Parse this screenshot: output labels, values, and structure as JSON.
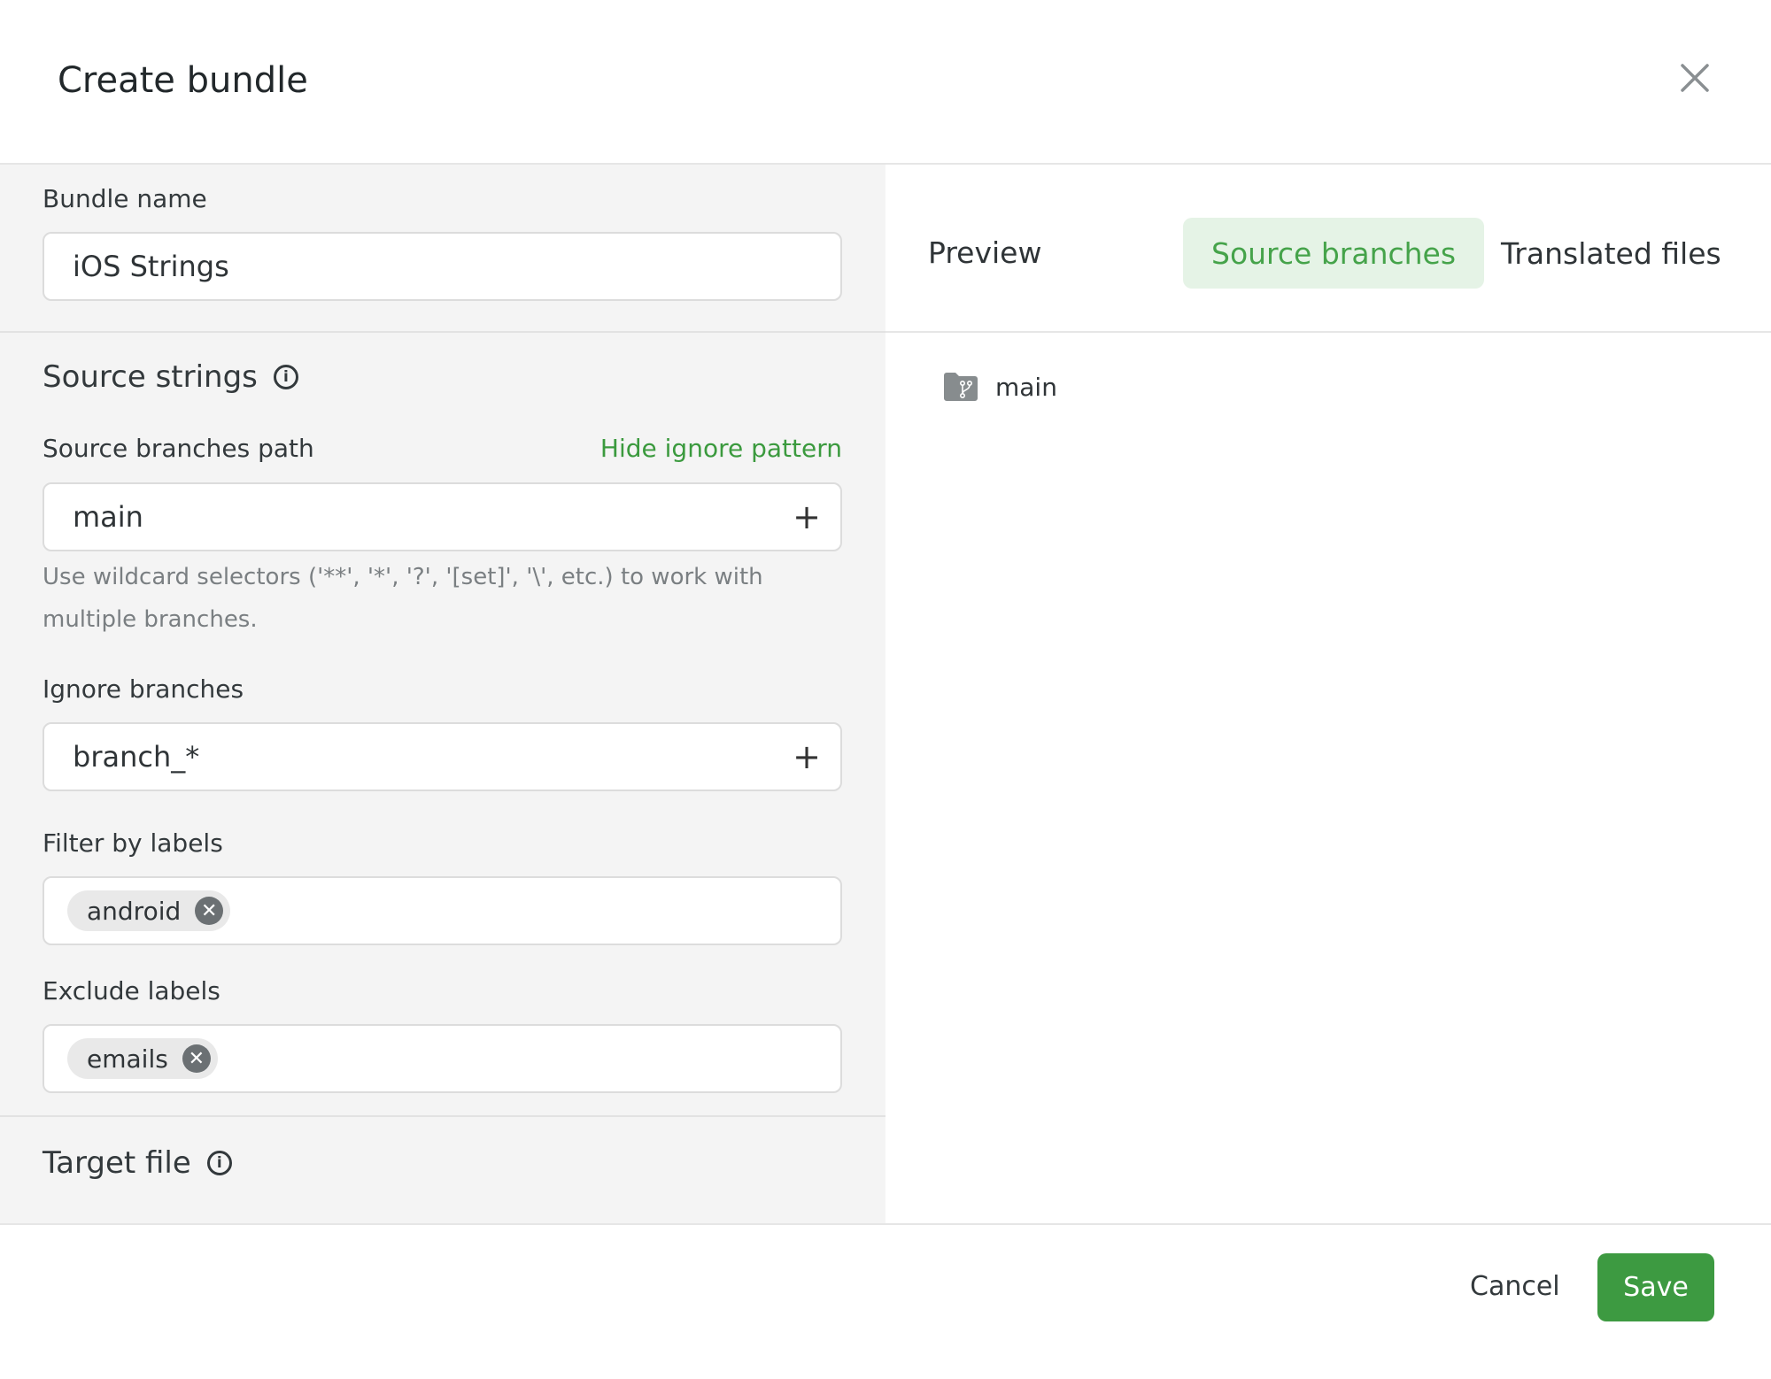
{
  "header": {
    "title": "Create bundle",
    "close_icon": "close-icon"
  },
  "form": {
    "bundle_name": {
      "label": "Bundle name",
      "value": "iOS Strings"
    },
    "source_strings": {
      "heading": "Source strings"
    },
    "source_branches_path": {
      "label": "Source branches path",
      "toggle_link": "Hide ignore pattern",
      "value": "main",
      "help": "Use wildcard selectors ('**', '*', '?', '[set]', '\\', etc.) to work with multiple branches."
    },
    "ignore_branches": {
      "label": "Ignore branches",
      "value": "branch_*"
    },
    "filter_by_labels": {
      "label": "Filter by labels",
      "chips": [
        "android"
      ]
    },
    "exclude_labels": {
      "label": "Exclude labels",
      "chips": [
        "emails"
      ]
    },
    "target_file": {
      "heading": "Target file"
    }
  },
  "preview": {
    "title": "Preview",
    "tabs": [
      {
        "label": "Source branches",
        "active": true
      },
      {
        "label": "Translated files",
        "active": false
      }
    ],
    "items": [
      {
        "name": "main",
        "icon": "branch-folder-icon"
      }
    ]
  },
  "footer": {
    "cancel": "Cancel",
    "save": "Save"
  },
  "colors": {
    "accent": "#3d9a41",
    "tab_active_bg": "#e5f3e6"
  }
}
